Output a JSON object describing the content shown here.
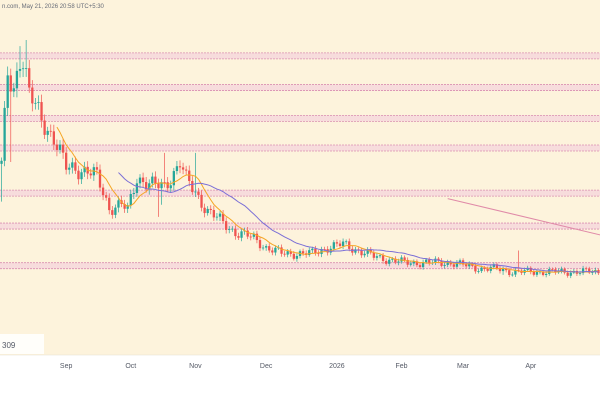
{
  "header": {
    "text": "n.com, May 21, 2026 20:58 UTC+5:30"
  },
  "price_box": {
    "text": "309"
  },
  "colors": {
    "plot_bg": "#fdf3dc",
    "band_fill": "#f7dcdc",
    "band_edge": "#d98fb0",
    "up": "#26a69a",
    "down": "#ef5350",
    "ma_fast": "#f5a623",
    "ma_slow": "#7b6fd6",
    "trendline": "#e08aa8",
    "axis_bg": "#ffffff"
  },
  "chart_data": {
    "type": "candlestick",
    "title": "",
    "xlabel": "",
    "ylabel": "",
    "x_ticks": [
      {
        "label": "Sep",
        "index": 21
      },
      {
        "label": "Oct",
        "index": 42
      },
      {
        "label": "Nov",
        "index": 63
      },
      {
        "label": "Dec",
        "index": 86
      },
      {
        "label": "2026",
        "index": 109
      },
      {
        "label": "Feb",
        "index": 130
      },
      {
        "label": "Mar",
        "index": 150
      },
      {
        "label": "Apr",
        "index": 172
      }
    ],
    "y_range": [
      0,
      100
    ],
    "horizontal_levels": [
      94.8,
      84.4,
      74.3,
      64.6,
      49.8,
      39.0,
      26.0
    ],
    "trendline": {
      "from": [
        145,
        48
      ],
      "to": [
        195,
        36
      ]
    },
    "anchors": [
      [
        0,
        59
      ],
      [
        2,
        88
      ],
      [
        4,
        84
      ],
      [
        6,
        95
      ],
      [
        7,
        94
      ],
      [
        9,
        82
      ],
      [
        11,
        78
      ],
      [
        13,
        74
      ],
      [
        17,
        68
      ],
      [
        21,
        58
      ],
      [
        24,
        58
      ],
      [
        28,
        57
      ],
      [
        31,
        55
      ],
      [
        35,
        45
      ],
      [
        39,
        46
      ],
      [
        41,
        44
      ],
      [
        44,
        55
      ],
      [
        46,
        54
      ],
      [
        50,
        52
      ],
      [
        53,
        52
      ],
      [
        55,
        55
      ],
      [
        58,
        60
      ],
      [
        60,
        54
      ],
      [
        63,
        50
      ],
      [
        67,
        44
      ],
      [
        72,
        40
      ],
      [
        76,
        37
      ],
      [
        82,
        35
      ],
      [
        86,
        32
      ],
      [
        91,
        30
      ],
      [
        96,
        30
      ],
      [
        101,
        30
      ],
      [
        106,
        32
      ],
      [
        111,
        33
      ],
      [
        116,
        31
      ],
      [
        121,
        29
      ],
      [
        126,
        28
      ],
      [
        131,
        27
      ],
      [
        136,
        27
      ],
      [
        141,
        27
      ],
      [
        146,
        27
      ],
      [
        151,
        26
      ],
      [
        156,
        25
      ],
      [
        161,
        25
      ],
      [
        166,
        24
      ],
      [
        171,
        24
      ],
      [
        176,
        24
      ],
      [
        181,
        24
      ],
      [
        186,
        24
      ],
      [
        191,
        24
      ],
      [
        194,
        24
      ]
    ],
    "spikes": [
      {
        "index": 6,
        "high": 98
      },
      {
        "index": 8,
        "high": 100
      },
      {
        "index": 53,
        "high": 63
      },
      {
        "index": 63,
        "high": 63
      },
      {
        "index": 168,
        "high": 31
      }
    ],
    "dips": [
      {
        "index": 3,
        "low": 60
      },
      {
        "index": 0,
        "low": 47
      },
      {
        "index": 51,
        "low": 42
      },
      {
        "index": 52,
        "low": 46
      },
      {
        "index": 163,
        "low": 23
      }
    ],
    "ma_fast_period": 8,
    "ma_slow_period": 24
  }
}
